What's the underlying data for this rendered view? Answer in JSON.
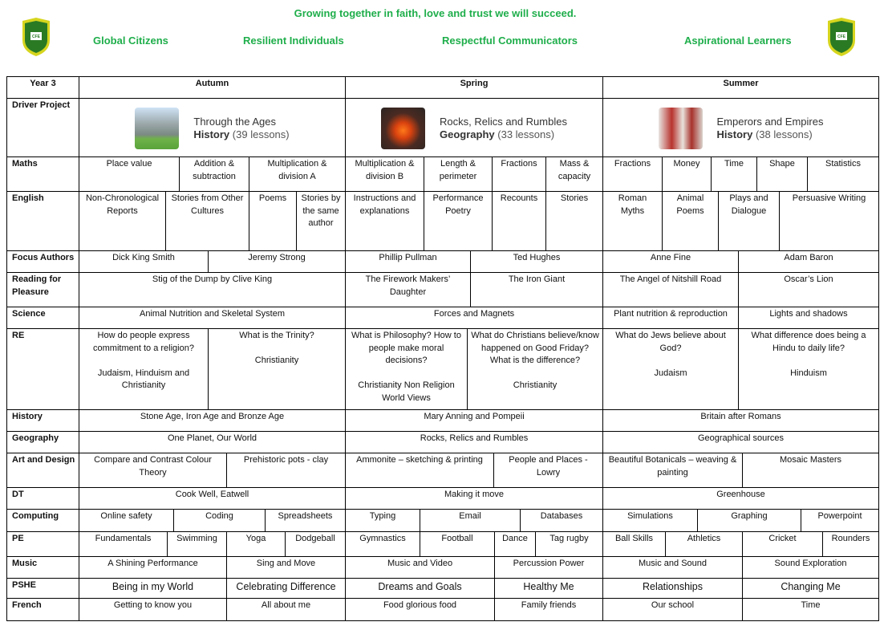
{
  "header": {
    "motto": "Growing together in faith, love and trust we will succeed.",
    "values": [
      "Global Citizens",
      "Resilient Individuals",
      "Respectful Communicators",
      "Aspirational Learners"
    ],
    "crest_text": "CFE",
    "brand_color": "#1fae4b"
  },
  "table": {
    "year": "Year 3",
    "terms": [
      "Autumn",
      "Spring",
      "Summer"
    ],
    "driver_label": "Driver Project",
    "driver_projects": [
      {
        "title": "Through the Ages",
        "subject": "History",
        "lessons": "(39 lessons)",
        "image": "stonehenge"
      },
      {
        "title": "Rocks, Relics and Rumbles",
        "subject": "Geography",
        "lessons": "(33 lessons)",
        "image": "volcano"
      },
      {
        "title": "Emperors and Empires",
        "subject": "History",
        "lessons": "(38 lessons)",
        "image": "roman-soldiers"
      }
    ],
    "rows": [
      {
        "label": "Maths",
        "cells": [
          "Place value",
          "Addition & subtraction",
          "Multiplication & division A",
          "Multiplication & division B",
          "Length & perimeter",
          "Fractions",
          "Mass & capacity",
          "Fractions",
          "Money",
          "Time",
          "Shape",
          "Statistics"
        ]
      },
      {
        "label": "English",
        "cells": [
          "Non-Chronological Reports",
          "Stories from Other Cultures",
          "Poems",
          "Stories by the same author",
          "Instructions and explanations",
          "Performance Poetry",
          "Recounts",
          "Stories",
          "Roman Myths",
          "Animal Poems",
          "Plays and Dialogue",
          "Persuasive Writing"
        ]
      },
      {
        "label": "Focus Authors",
        "cells": [
          "Dick King Smith",
          "Jeremy Strong",
          "Phillip Pullman",
          "Ted Hughes",
          "Anne Fine",
          "Adam Baron"
        ]
      },
      {
        "label": "Reading for Pleasure",
        "cells": [
          "Stig of the Dump by Clive King",
          "The Firework Makers’ Daughter",
          "The Iron Giant",
          "The Angel of Nitshill Road",
          "Oscar’s Lion"
        ]
      },
      {
        "label": "Science",
        "cells": [
          "Animal Nutrition and Skeletal System",
          "Forces and Magnets",
          "Plant nutrition & reproduction",
          "Lights and shadows"
        ]
      },
      {
        "label": "RE",
        "cells": [
          "How do people express commitment to a religion?\n\nJudaism, Hinduism and Christianity",
          "What is the Trinity?\n\nChristianity",
          "What is Philosophy? How to people make moral decisions?\n\nChristianity Non Religion World Views",
          "What do Christians believe/know happened on Good Friday? What is the difference?\n\nChristianity",
          "What do Jews believe about God?\n\nJudaism",
          "What difference does being a Hindu to daily life?\n\nHinduism"
        ]
      },
      {
        "label": "History",
        "cells": [
          "Stone Age, Iron Age and Bronze Age",
          "Mary Anning and Pompeii",
          "Britain after Romans"
        ]
      },
      {
        "label": "Geography",
        "cells": [
          "One Planet, Our World",
          "Rocks, Relics and Rumbles",
          "Geographical sources"
        ]
      },
      {
        "label": "Art and Design",
        "cells": [
          "Compare and Contrast Colour Theory",
          "Prehistoric pots - clay",
          "Ammonite – sketching & printing",
          "People and Places - Lowry",
          "Beautiful Botanicals – weaving & painting",
          "Mosaic Masters"
        ]
      },
      {
        "label": "DT",
        "cells": [
          "Cook Well, Eatwell",
          "Making it move",
          "Greenhouse"
        ]
      },
      {
        "label": "Computing",
        "cells": [
          "Online safety",
          "Coding",
          "Spreadsheets",
          "Typing",
          "Email",
          "Databases",
          "Simulations",
          "Graphing",
          "Powerpoint"
        ]
      },
      {
        "label": "PE",
        "cells": [
          "Fundamentals",
          "Swimming",
          "Yoga",
          "Dodgeball",
          "Gymnastics",
          "Football",
          "Dance",
          "Tag rugby",
          "Ball Skills",
          "Athletics",
          "Cricket",
          "Rounders"
        ]
      },
      {
        "label": "Music",
        "cells": [
          "A Shining Performance",
          "Sing and Move",
          "Music and Video",
          "Percussion Power",
          "Music and Sound",
          "Sound Exploration"
        ]
      },
      {
        "label": "PSHE",
        "cells": [
          "Being in my World",
          "Celebrating Difference",
          "Dreams and Goals",
          "Healthy Me",
          "Relationships",
          "Changing Me"
        ]
      },
      {
        "label": "French",
        "cells": [
          "Getting to know you",
          "All about me",
          "Food glorious food",
          "Family friends",
          "Our school",
          "Time"
        ]
      }
    ]
  }
}
